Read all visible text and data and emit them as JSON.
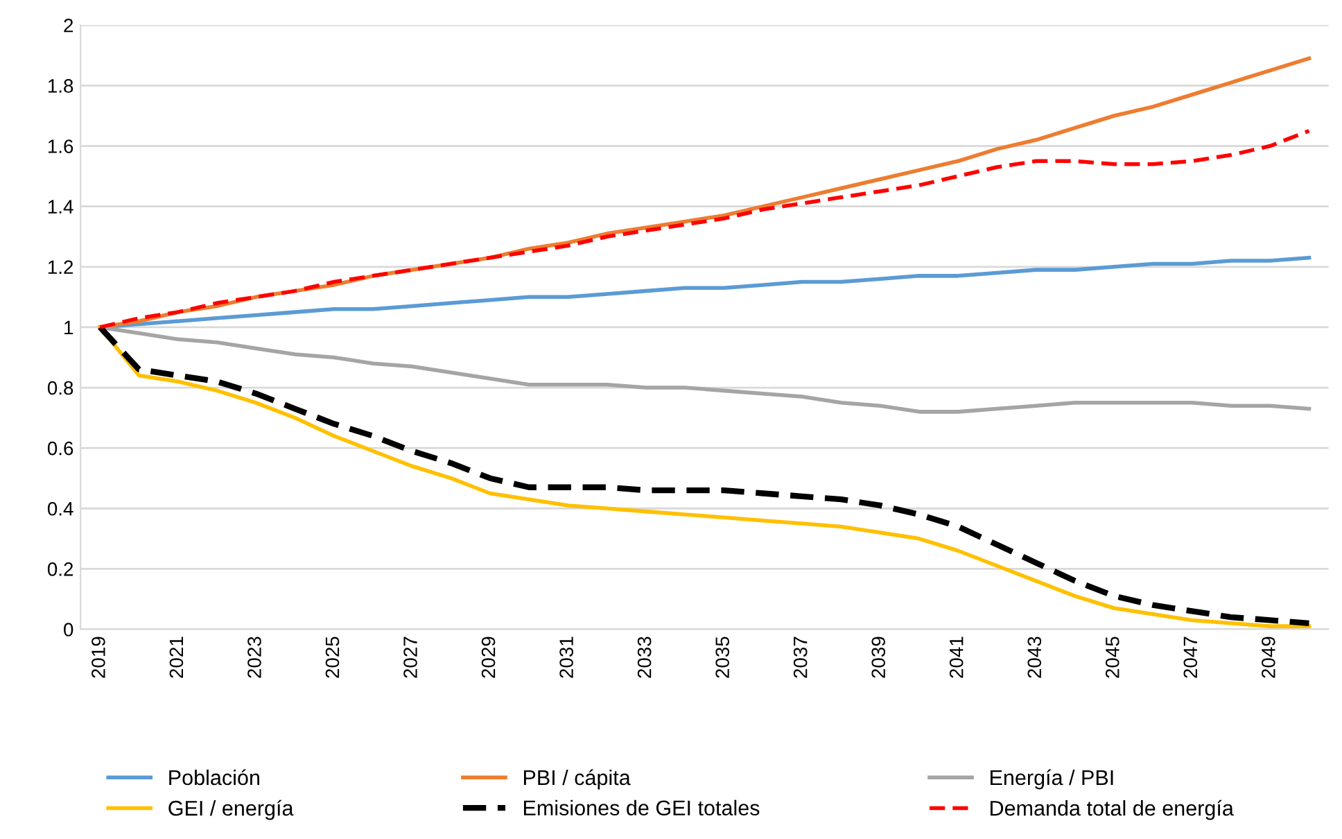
{
  "chart_data": {
    "type": "line",
    "categories": [
      "2019",
      null,
      "2021",
      null,
      "2023",
      null,
      "2025",
      null,
      "2027",
      null,
      "2029",
      null,
      "2031",
      null,
      "2033",
      null,
      "2035",
      null,
      "2037",
      null,
      "2039",
      null,
      "2041",
      null,
      "2043",
      null,
      "2045",
      null,
      "2047",
      null,
      "2049",
      null
    ],
    "series": [
      {
        "name": "Población",
        "color": "#5b9bd5",
        "line_style": "solid",
        "values": [
          1.0,
          1.01,
          1.02,
          1.03,
          1.04,
          1.05,
          1.06,
          1.06,
          1.07,
          1.08,
          1.09,
          1.1,
          1.1,
          1.11,
          1.12,
          1.13,
          1.13,
          1.14,
          1.15,
          1.15,
          1.16,
          1.17,
          1.17,
          1.18,
          1.19,
          1.19,
          1.2,
          1.21,
          1.21,
          1.22,
          1.22,
          1.23
        ]
      },
      {
        "name": "PBI / cápita",
        "color": "#ed7d31",
        "line_style": "solid",
        "values": [
          1.0,
          1.02,
          1.05,
          1.07,
          1.1,
          1.12,
          1.14,
          1.17,
          1.19,
          1.21,
          1.23,
          1.26,
          1.28,
          1.31,
          1.33,
          1.35,
          1.37,
          1.4,
          1.43,
          1.46,
          1.49,
          1.52,
          1.55,
          1.59,
          1.62,
          1.66,
          1.7,
          1.73,
          1.77,
          1.81,
          1.85,
          1.89
        ]
      },
      {
        "name": "Energía / PBI",
        "color": "#a5a5a5",
        "line_style": "solid",
        "values": [
          1.0,
          0.98,
          0.96,
          0.95,
          0.93,
          0.91,
          0.9,
          0.88,
          0.87,
          0.85,
          0.83,
          0.81,
          0.81,
          0.81,
          0.8,
          0.8,
          0.79,
          0.78,
          0.77,
          0.75,
          0.74,
          0.72,
          0.72,
          0.73,
          0.74,
          0.75,
          0.75,
          0.75,
          0.75,
          0.74,
          0.74,
          0.73
        ]
      },
      {
        "name": "GEI / energía",
        "color": "#ffc000",
        "line_style": "solid",
        "values": [
          1.0,
          0.84,
          0.82,
          0.79,
          0.75,
          0.7,
          0.64,
          0.59,
          0.54,
          0.5,
          0.45,
          0.43,
          0.41,
          0.4,
          0.39,
          0.38,
          0.37,
          0.36,
          0.35,
          0.34,
          0.32,
          0.3,
          0.26,
          0.21,
          0.16,
          0.11,
          0.07,
          0.05,
          0.03,
          0.02,
          0.01,
          0.01
        ]
      },
      {
        "name": "Emisiones de GEI totales",
        "color": "#000000",
        "line_style": "dashed",
        "values": [
          1.0,
          0.86,
          0.84,
          0.82,
          0.78,
          0.73,
          0.68,
          0.64,
          0.59,
          0.55,
          0.5,
          0.47,
          0.47,
          0.47,
          0.46,
          0.46,
          0.46,
          0.45,
          0.44,
          0.43,
          0.41,
          0.38,
          0.34,
          0.28,
          0.22,
          0.16,
          0.11,
          0.08,
          0.06,
          0.04,
          0.03,
          0.02
        ]
      },
      {
        "name": "Demanda total de energía",
        "color": "#ff0000",
        "line_style": "dashed",
        "values": [
          1.0,
          1.03,
          1.05,
          1.08,
          1.1,
          1.12,
          1.15,
          1.17,
          1.19,
          1.21,
          1.23,
          1.25,
          1.27,
          1.3,
          1.32,
          1.34,
          1.36,
          1.39,
          1.41,
          1.43,
          1.45,
          1.47,
          1.5,
          1.53,
          1.55,
          1.55,
          1.54,
          1.54,
          1.55,
          1.57,
          1.6,
          1.65
        ]
      }
    ],
    "ylim": [
      0,
      2
    ],
    "yticks": [
      0,
      0.2,
      0.4,
      0.6,
      0.8,
      1,
      1.2,
      1.4,
      1.6,
      1.8,
      2
    ],
    "grid": "y",
    "legend": "bottom"
  }
}
